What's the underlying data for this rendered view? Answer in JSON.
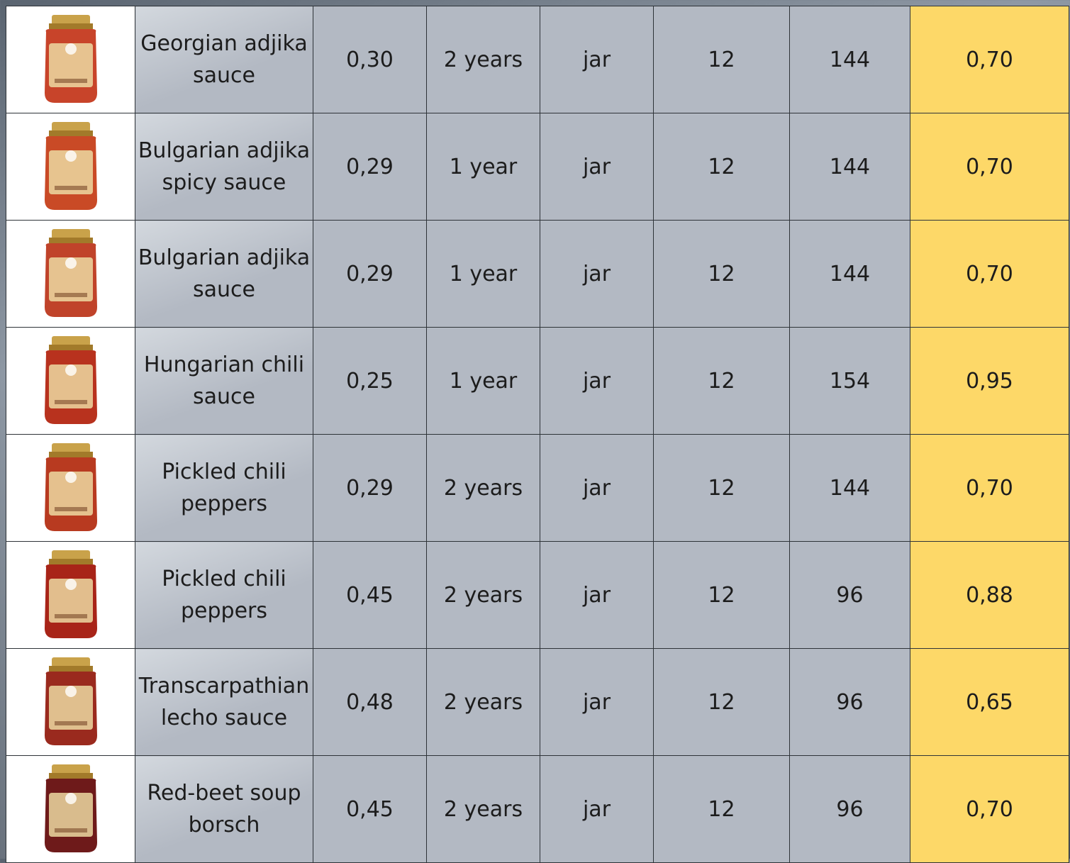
{
  "table": {
    "rows": [
      [
        "Georgian adjika sauce",
        "0,30",
        "2 years",
        "jar",
        "12",
        "144",
        "0,70"
      ],
      [
        "Bulgarian adjika spicy sauce",
        "0,29",
        "1 year",
        "jar",
        "12",
        "144",
        "0,70"
      ],
      [
        "Bulgarian adjika sauce",
        "0,29",
        "1 year",
        "jar",
        "12",
        "144",
        "0,70"
      ],
      [
        "Hungarian chili sauce",
        "0,25",
        "1 year",
        "jar",
        "12",
        "154",
        "0,95"
      ],
      [
        "Pickled chili peppers",
        "0,29",
        "2 years",
        "jar",
        "12",
        "144",
        "0,70"
      ],
      [
        "Pickled chili peppers",
        "0,45",
        "2 years",
        "jar",
        "12",
        "96",
        "0,88"
      ],
      [
        "Transcarpathian lecho sauce",
        "0,48",
        "2 years",
        "jar",
        "12",
        "96",
        "0,65"
      ],
      [
        "Red-beet soup borsch",
        "0,45",
        "2 years",
        "jar",
        "12",
        "96",
        "0,70"
      ]
    ]
  }
}
